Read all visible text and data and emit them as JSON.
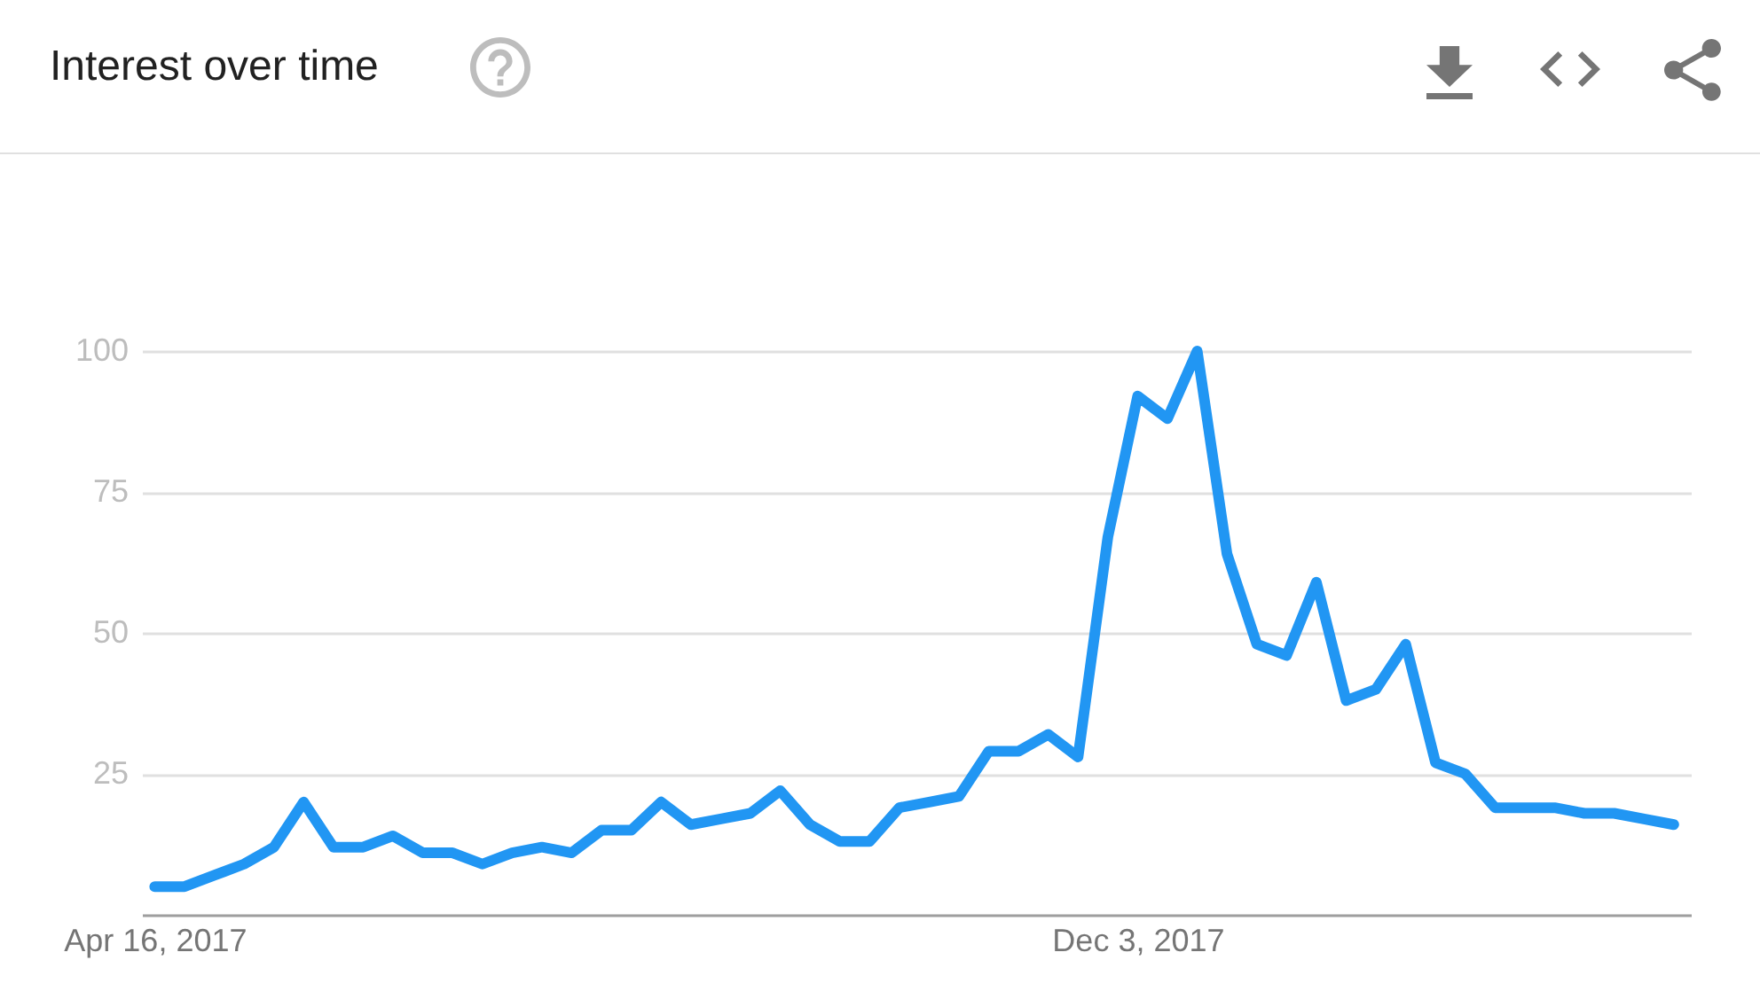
{
  "chart_data": {
    "type": "line",
    "title": "Interest over time",
    "x": [
      "2017-04-16",
      "2017-04-23",
      "2017-04-30",
      "2017-05-07",
      "2017-05-14",
      "2017-05-21",
      "2017-05-28",
      "2017-06-04",
      "2017-06-11",
      "2017-06-18",
      "2017-06-25",
      "2017-07-02",
      "2017-07-09",
      "2017-07-16",
      "2017-07-23",
      "2017-07-30",
      "2017-08-06",
      "2017-08-13",
      "2017-08-20",
      "2017-08-27",
      "2017-09-03",
      "2017-09-10",
      "2017-09-17",
      "2017-09-24",
      "2017-10-01",
      "2017-10-08",
      "2017-10-15",
      "2017-10-22",
      "2017-10-29",
      "2017-11-05",
      "2017-11-12",
      "2017-11-19",
      "2017-11-26",
      "2017-12-03",
      "2017-12-10",
      "2017-12-17",
      "2017-12-24",
      "2017-12-31",
      "2018-01-07",
      "2018-01-14",
      "2018-01-21",
      "2018-01-28",
      "2018-02-04",
      "2018-02-11",
      "2018-02-18",
      "2018-02-25",
      "2018-03-04",
      "2018-03-11",
      "2018-03-18",
      "2018-03-25",
      "2018-04-01",
      "2018-04-08"
    ],
    "series": [
      {
        "color": "#2196f3",
        "values": [
          5,
          5,
          7,
          9,
          12,
          20,
          12,
          12,
          14,
          11,
          11,
          9,
          11,
          12,
          11,
          15,
          15,
          20,
          16,
          17,
          18,
          22,
          16,
          13,
          13,
          19,
          20,
          21,
          29,
          29,
          32,
          28,
          67,
          92,
          88,
          100,
          64,
          48,
          46,
          59,
          38,
          40,
          48,
          27,
          25,
          19,
          19,
          19,
          18,
          18,
          17,
          16
        ]
      }
    ],
    "xlim": [
      "2017-04-13",
      "2018-04-12"
    ],
    "xticks": [
      {
        "value": "2017-04-16",
        "label": "Apr 16, 2017"
      },
      {
        "value": "2017-12-03",
        "label": "Dec 3, 2017"
      }
    ],
    "ylim": [
      0,
      100
    ],
    "yticks": [
      25,
      50,
      75,
      100
    ],
    "grid": "y"
  }
}
